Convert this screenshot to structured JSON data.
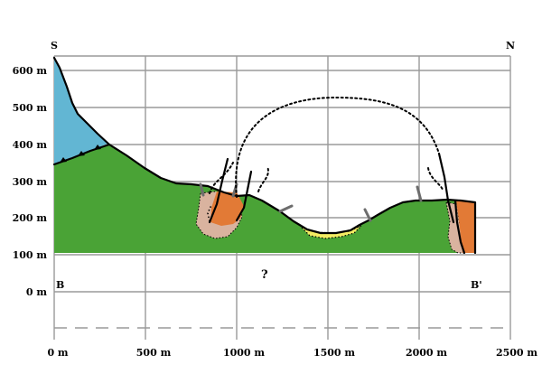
{
  "orientation": {
    "left": "S",
    "right": "N"
  },
  "section_ends": {
    "left": "B",
    "right": "B'"
  },
  "unknown_marker": "?",
  "y_ticks": [
    "600 m",
    "500 m",
    "400 m",
    "300 m",
    "200 m",
    "100 m",
    "0 m"
  ],
  "x_ticks": [
    "0 m",
    "500 m",
    "1000 m",
    "1500 m",
    "2000 m",
    "2500 m"
  ],
  "colors": {
    "green_unit": "#4aa336",
    "blue_unit": "#62b6d3",
    "orange_unit": "#e27a36",
    "pink_breccia": "#d9b39f",
    "yellow_unit": "#f3ec63",
    "grid": "#9a9a9a"
  }
}
